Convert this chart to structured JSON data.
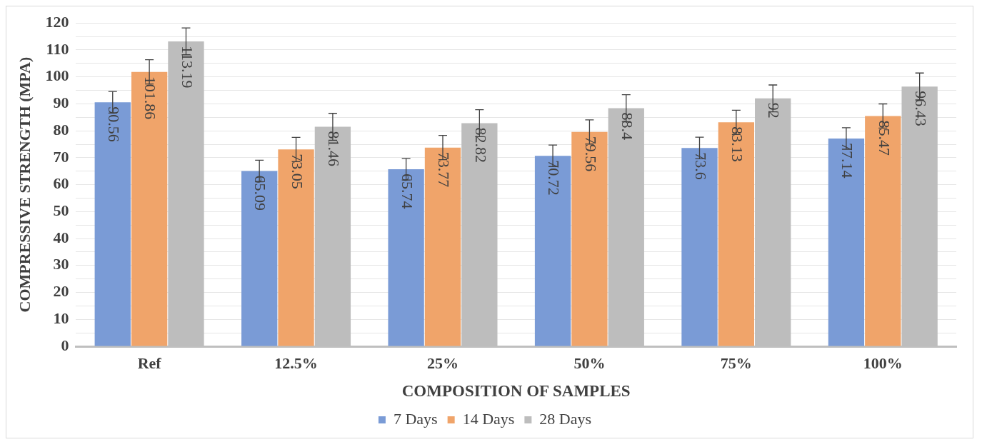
{
  "chart_data": {
    "type": "bar",
    "xlabel": "COMPOSITION OF SAMPLES",
    "ylabel": "COMPRESSIVE STRENGTH (MPA)",
    "categories": [
      "Ref",
      "12.5%",
      "25%",
      "50%",
      "75%",
      "100%"
    ],
    "series": [
      {
        "name": "7 Days",
        "color": "#7a9bd6",
        "values": [
          90.56,
          65.09,
          65.74,
          70.72,
          73.6,
          77.14
        ],
        "errors": [
          4,
          4,
          4,
          4,
          4,
          4
        ]
      },
      {
        "name": "14 Days",
        "color": "#f0a46a",
        "values": [
          101.86,
          73.05,
          73.77,
          79.56,
          83.13,
          85.47
        ],
        "errors": [
          4.5,
          4.5,
          4.5,
          4.5,
          4.5,
          4.5
        ]
      },
      {
        "name": "28 Days",
        "color": "#bdbdbd",
        "values": [
          113.19,
          81.46,
          82.82,
          88.4,
          92,
          96.43
        ],
        "errors": [
          5,
          5,
          5,
          5,
          5,
          5
        ]
      }
    ],
    "ylim": [
      0,
      120
    ],
    "yticks": [
      0,
      {
        "value": 5,
        "label": null
      },
      10,
      {
        "value": 15,
        "label": null
      },
      20,
      {
        "value": 25,
        "label": null
      },
      30,
      {
        "value": 35,
        "label": null
      },
      40,
      {
        "value": 45,
        "label": null
      },
      50,
      {
        "value": 55,
        "label": null
      },
      60,
      {
        "value": 65,
        "label": null
      },
      70,
      {
        "value": 75,
        "label": null
      },
      80,
      {
        "value": 85,
        "label": null
      },
      90,
      {
        "value": 95,
        "label": null
      },
      100,
      {
        "value": 105,
        "label": null
      },
      110,
      {
        "value": 115,
        "label": null
      },
      120
    ],
    "grid": "y",
    "legend": "bottom",
    "data_labels": true
  }
}
